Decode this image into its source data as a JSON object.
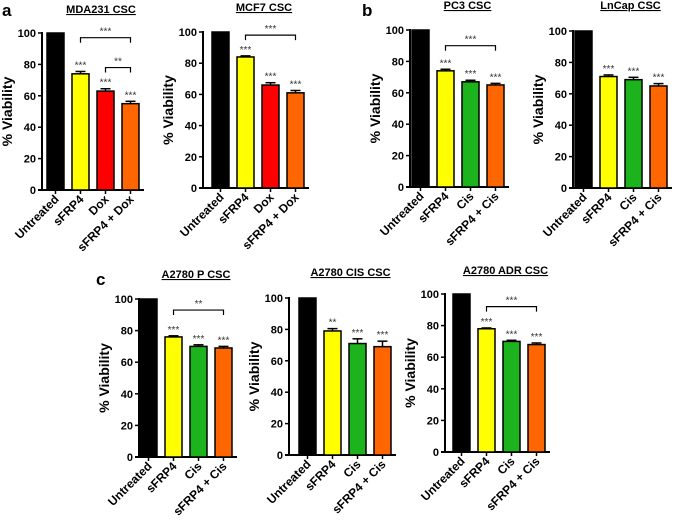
{
  "panel_labels": [
    "a",
    "b",
    "c"
  ],
  "chart_data": [
    {
      "type": "bar",
      "panel": "a",
      "title": "MDA231 CSC",
      "ylabel": "% Viability",
      "ylim": [
        0,
        100
      ],
      "yticks": [
        0,
        20,
        40,
        60,
        80,
        100
      ],
      "categories": [
        "Untreated",
        "sFRP4",
        "Dox",
        "sFRP4 + Dox"
      ],
      "values": [
        100,
        74,
        63,
        55
      ],
      "errors": [
        0,
        1.5,
        1.5,
        1.5
      ],
      "colors": [
        "#000000",
        "#ffff00",
        "#ff0000",
        "#ff6600"
      ],
      "significance": [
        "",
        "***",
        "***",
        "***"
      ],
      "brackets": [
        {
          "from": 1,
          "to": 3,
          "label": "***",
          "level": 97
        },
        {
          "from": 2,
          "to": 3,
          "label": "**",
          "level": 78
        }
      ]
    },
    {
      "type": "bar",
      "panel": "a",
      "title": "MCF7 CSC",
      "ylabel": "% Viability",
      "ylim": [
        0,
        100
      ],
      "yticks": [
        0,
        20,
        40,
        60,
        80,
        100
      ],
      "categories": [
        "Untreated",
        "sFRP4",
        "Dox",
        "sFRP4 + Dox"
      ],
      "values": [
        100,
        84,
        66,
        61
      ],
      "errors": [
        0,
        0.7,
        1.5,
        1.5
      ],
      "colors": [
        "#000000",
        "#ffff00",
        "#ff0000",
        "#ff6600"
      ],
      "significance": [
        "",
        "***",
        "***",
        "***"
      ],
      "brackets": [
        {
          "from": 1,
          "to": 3,
          "label": "***",
          "level": 98
        }
      ]
    },
    {
      "type": "bar",
      "panel": "b",
      "title": "PC3 CSC",
      "ylabel": "% Viability",
      "ylim": [
        0,
        100
      ],
      "yticks": [
        0,
        20,
        40,
        60,
        80,
        100
      ],
      "categories": [
        "Untreated",
        "sFRP4",
        "Cis",
        "sFRP4 + Cis"
      ],
      "values": [
        100,
        74,
        67,
        65
      ],
      "errors": [
        0,
        1,
        1,
        1
      ],
      "colors": [
        "#000000",
        "#ffff00",
        "#1db31d",
        "#ff6600"
      ],
      "significance": [
        "",
        "***",
        "***",
        "***"
      ],
      "brackets": [
        {
          "from": 1,
          "to": 3,
          "label": "***",
          "level": 90
        }
      ]
    },
    {
      "type": "bar",
      "panel": "b",
      "title": "LnCap CSC",
      "ylabel": "% Viability",
      "ylim": [
        0,
        100
      ],
      "yticks": [
        0,
        20,
        40,
        60,
        80,
        100
      ],
      "categories": [
        "Untreated",
        "sFRP4",
        "Cis",
        "sFRP4 + Cis"
      ],
      "values": [
        100,
        71,
        69,
        65
      ],
      "errors": [
        0,
        1,
        1.5,
        1.5
      ],
      "colors": [
        "#000000",
        "#ffff00",
        "#1db31d",
        "#ff6600"
      ],
      "significance": [
        "",
        "***",
        "***",
        "***"
      ],
      "brackets": []
    },
    {
      "type": "bar",
      "panel": "c",
      "title": "A2780 P CSC",
      "ylabel": "% Viability",
      "ylim": [
        0,
        100
      ],
      "yticks": [
        0,
        20,
        40,
        60,
        80,
        100
      ],
      "categories": [
        "Untreated",
        "sFRP4",
        "Cis",
        "sFRP4 + Cis"
      ],
      "values": [
        100,
        76,
        70,
        69
      ],
      "errors": [
        0,
        0.7,
        1,
        1
      ],
      "colors": [
        "#000000",
        "#ffff00",
        "#1db31d",
        "#ff6600"
      ],
      "significance": [
        "",
        "***",
        "***",
        "***"
      ],
      "brackets": [
        {
          "from": 1,
          "to": 3,
          "label": "**",
          "level": 93
        }
      ]
    },
    {
      "type": "bar",
      "panel": "c",
      "title": "A2780 CIS CSC",
      "ylabel": "% Viability",
      "ylim": [
        0,
        100
      ],
      "yticks": [
        0,
        20,
        40,
        60,
        80,
        100
      ],
      "categories": [
        "Untreated",
        "sFRP4",
        "Cis",
        "sFRP4 + Cis"
      ],
      "values": [
        100,
        79,
        71,
        69
      ],
      "errors": [
        0,
        1.5,
        3,
        3.5
      ],
      "colors": [
        "#000000",
        "#ffff00",
        "#1db31d",
        "#ff6600"
      ],
      "significance": [
        "",
        "**",
        "***",
        "***"
      ],
      "brackets": []
    },
    {
      "type": "bar",
      "panel": "c",
      "title": "A2780 ADR CSC",
      "ylabel": "% Viability",
      "ylim": [
        0,
        100
      ],
      "yticks": [
        0,
        20,
        40,
        60,
        80,
        100
      ],
      "categories": [
        "Untreated",
        "sFRP4",
        "Cis",
        "sFRP4 + Cis"
      ],
      "values": [
        100,
        78,
        70,
        68
      ],
      "errors": [
        0,
        0.5,
        0.7,
        1
      ],
      "colors": [
        "#000000",
        "#ffff00",
        "#1db31d",
        "#ff6600"
      ],
      "significance": [
        "",
        "***",
        "***",
        "***"
      ],
      "brackets": [
        {
          "from": 1,
          "to": 3,
          "label": "***",
          "level": 92
        }
      ]
    }
  ]
}
